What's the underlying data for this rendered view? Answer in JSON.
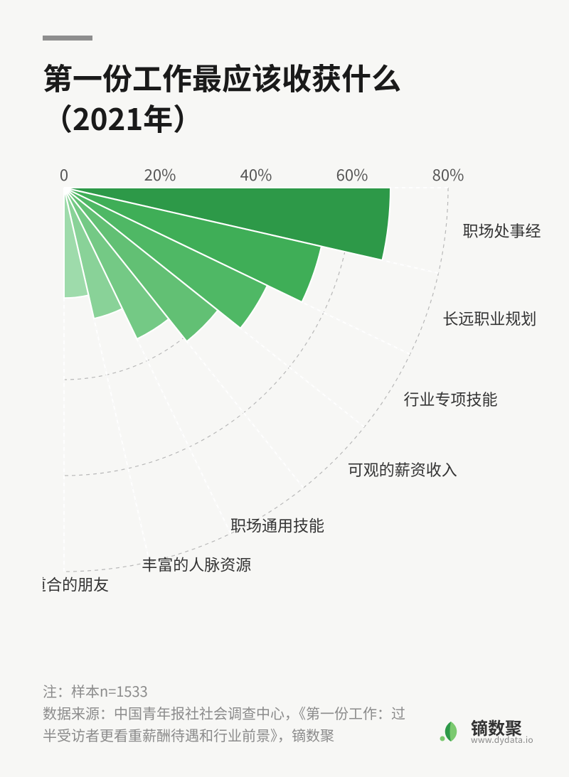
{
  "title_line1": "第一份工作最应该收获什么",
  "title_line2": "（2021年）",
  "chart": {
    "type": "radial-bar-fan",
    "axis_max": 80,
    "ticks": [
      0,
      20,
      40,
      60,
      80
    ],
    "tick_labels": [
      "0",
      "20%",
      "40%",
      "60%",
      "80%"
    ],
    "axis_fontsize": 22,
    "axis_color": "#555555",
    "grid_color": "#b8b8b8",
    "grid_dash": "5,5",
    "background": "#f7f7f5",
    "label_fontsize": 22,
    "label_color": "#333333",
    "series": [
      {
        "label": "职场处事经验",
        "value": 68,
        "color": "#2d9948"
      },
      {
        "label": "长远职业规划",
        "value": 55,
        "color": "#3fae57"
      },
      {
        "label": "行业专项技能",
        "value": 47,
        "color": "#4fb865"
      },
      {
        "label": "可观的薪资收入",
        "value": 41,
        "color": "#62c074"
      },
      {
        "label": "职场通用技能",
        "value": 35,
        "color": "#74c985"
      },
      {
        "label": "丰富的人脉资源",
        "value": 28,
        "color": "#89d298"
      },
      {
        "label": "志同道合的朋友",
        "value": 23,
        "color": "#9edbab"
      }
    ]
  },
  "footer": {
    "note": "注：样本n=1533",
    "source": "数据来源：中国青年报社社会调查中心，《第一份工作：过半受访者更看重薪酬待遇和行业前景》，镝数聚"
  },
  "brand": {
    "name": "镝数聚",
    "url": "www.dydata.io",
    "leaf_colors": [
      "#2d9948",
      "#7bc96f"
    ]
  }
}
